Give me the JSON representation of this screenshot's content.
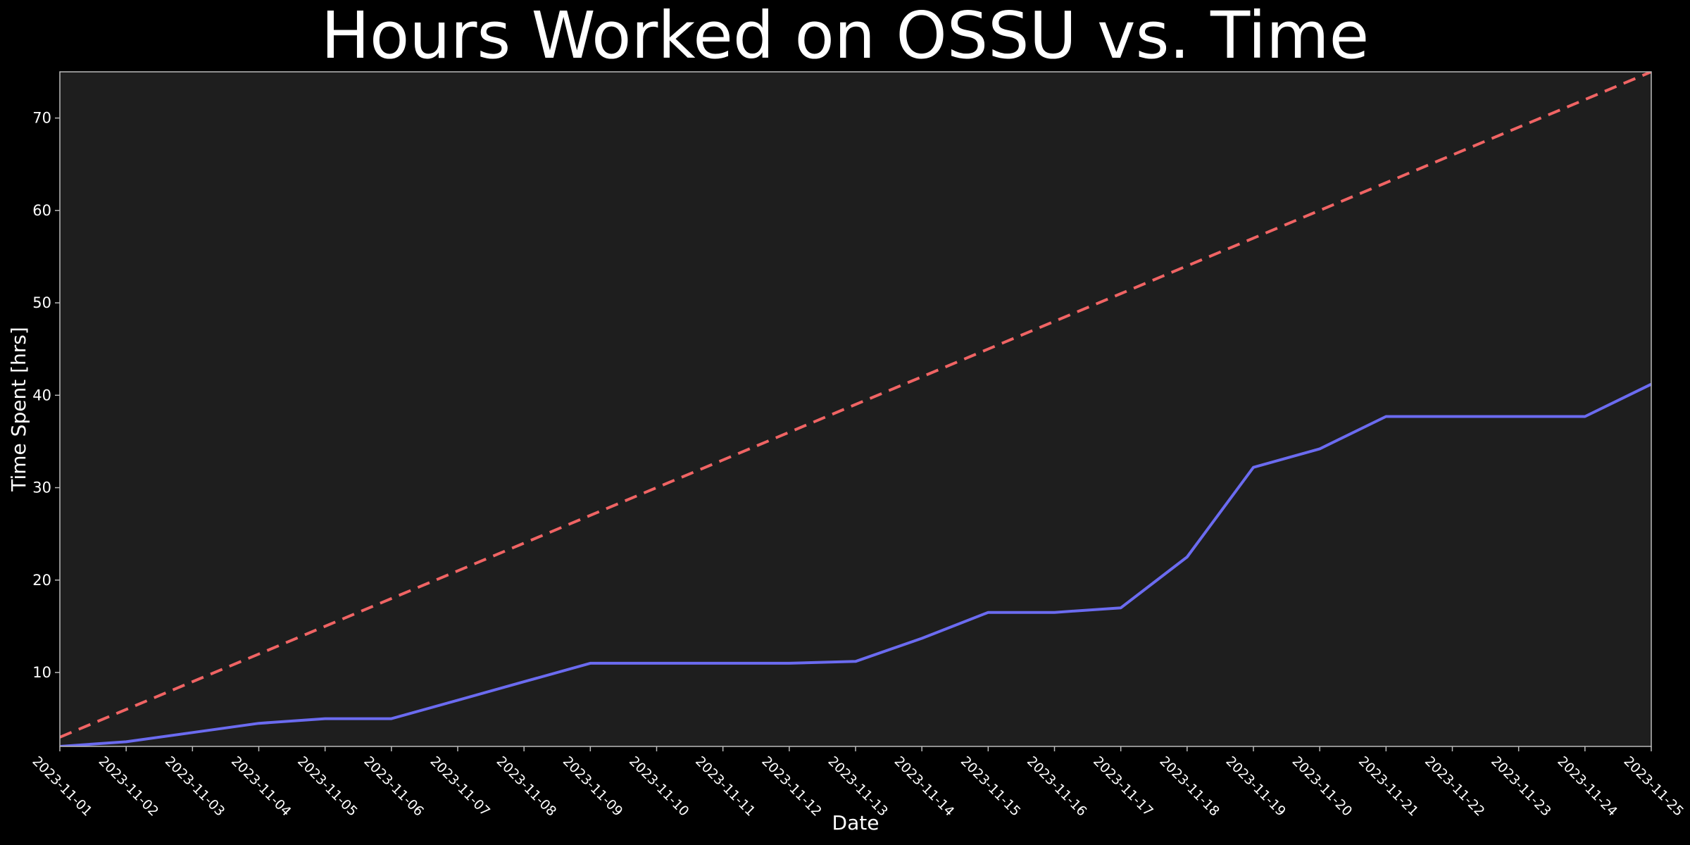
{
  "chart_data": {
    "type": "line",
    "title": "Hours Worked on OSSU vs. Time",
    "xlabel": "Date",
    "ylabel": "Time Spent [hrs]",
    "x": [
      "2023-11-01",
      "2023-11-02",
      "2023-11-03",
      "2023-11-04",
      "2023-11-05",
      "2023-11-06",
      "2023-11-07",
      "2023-11-08",
      "2023-11-09",
      "2023-11-10",
      "2023-11-11",
      "2023-11-12",
      "2023-11-13",
      "2023-11-14",
      "2023-11-15",
      "2023-11-16",
      "2023-11-17",
      "2023-11-18",
      "2023-11-19",
      "2023-11-20",
      "2023-11-21",
      "2023-11-22",
      "2023-11-23",
      "2023-11-24",
      "2023-11-25"
    ],
    "ylim": [
      2,
      75
    ],
    "yticks": [
      10,
      20,
      30,
      40,
      50,
      60,
      70
    ],
    "grid": false,
    "series": [
      {
        "style": "solid",
        "color": "#6b6bf0",
        "values": [
          2.0,
          2.5,
          3.5,
          4.5,
          5.0,
          5.0,
          7.0,
          9.0,
          11.0,
          11.0,
          11.0,
          11.0,
          11.2,
          13.7,
          16.5,
          16.5,
          17.0,
          22.5,
          32.2,
          34.2,
          37.7,
          37.7,
          37.7,
          37.7,
          41.2
        ]
      },
      {
        "style": "dashed",
        "color": "#f06464",
        "values": [
          3,
          6,
          9,
          12,
          15,
          18,
          21,
          24,
          27,
          30,
          33,
          36,
          39,
          42,
          45,
          48,
          51,
          54,
          57,
          60,
          63,
          66,
          69,
          72,
          75
        ]
      }
    ],
    "colors": {
      "background": "#000000",
      "plot_background": "#1e1e1e",
      "frame": "#bbbbbb",
      "text": "#ffffff"
    }
  }
}
